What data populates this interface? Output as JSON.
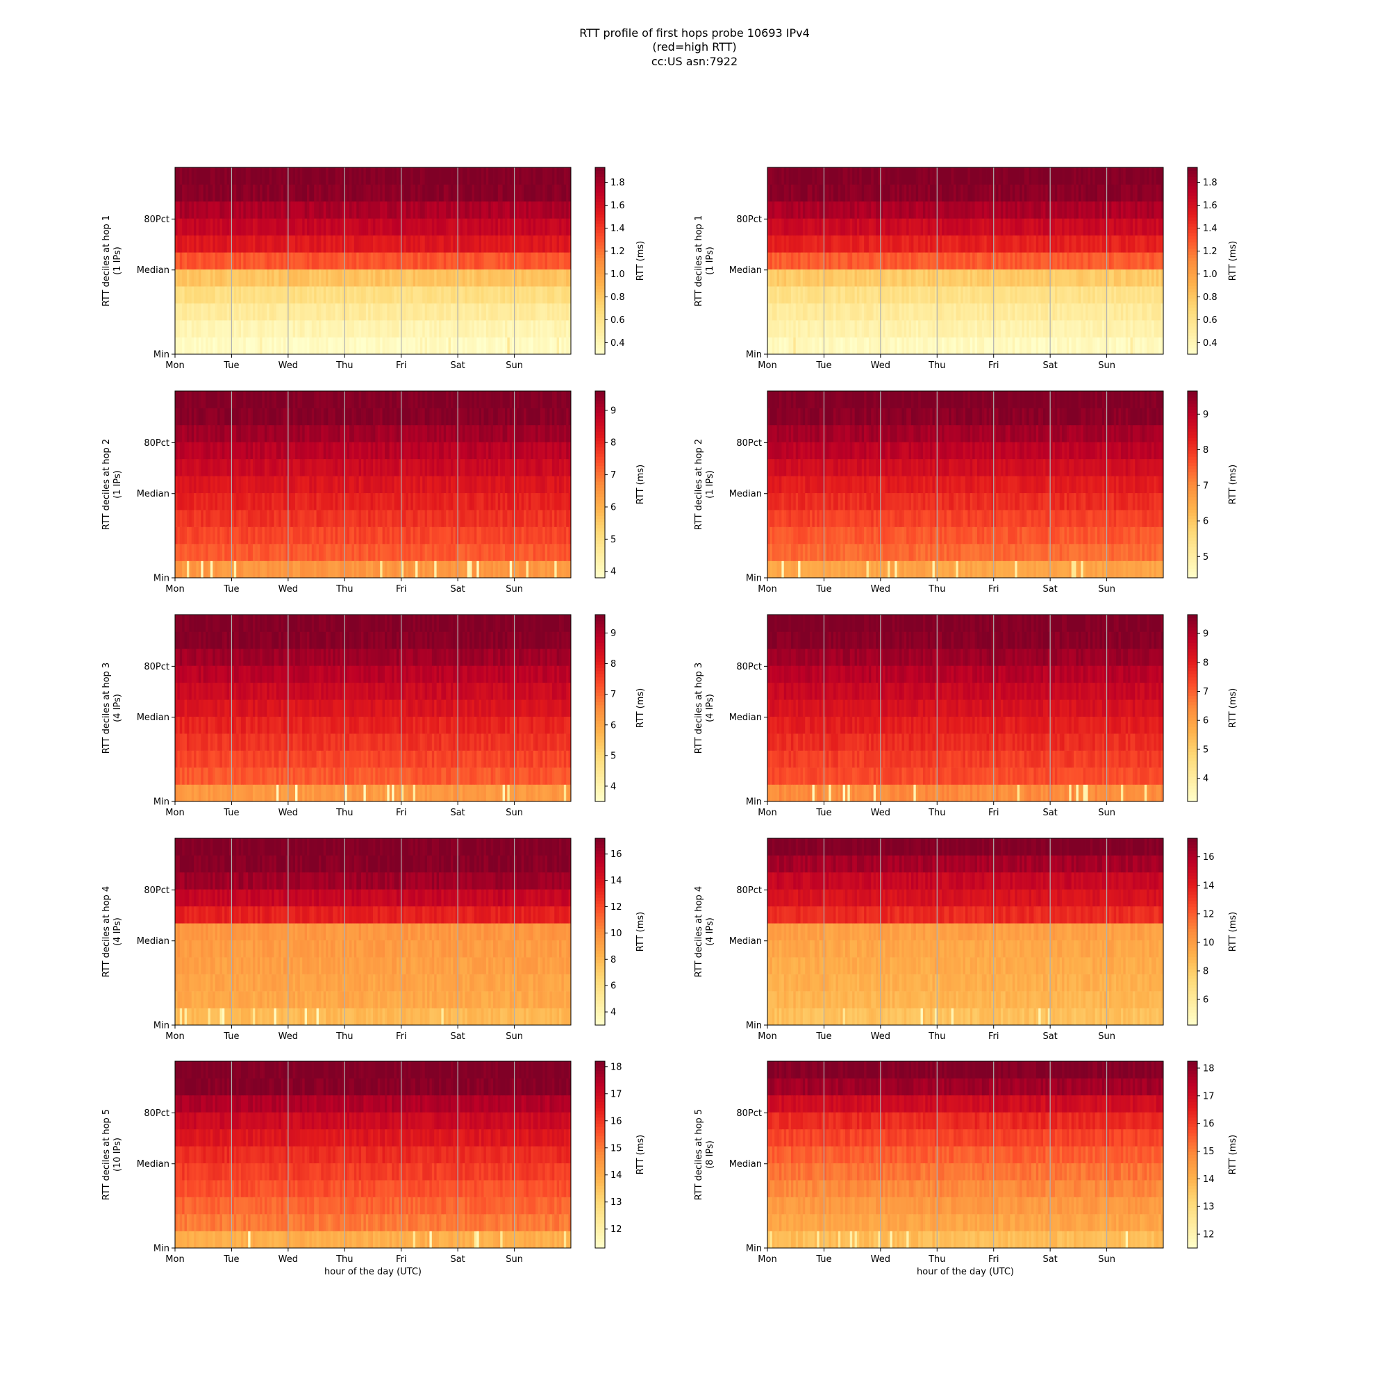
{
  "figure": {
    "title_lines": [
      "RTT profile of first hops probe 10693 IPv4",
      "(red=high RTT)",
      "cc:US asn:7922"
    ],
    "xlabel": "hour of the day (UTC)"
  },
  "chart_data": [
    {
      "type": "heatmap",
      "hop": 1,
      "column": "left",
      "ylabel_lines": [
        "RTT deciles at hop 1",
        "(1 IPs)"
      ],
      "x_ticks": [
        "Mon",
        "Tue",
        "Wed",
        "Thu",
        "Fri",
        "Sat",
        "Sun"
      ],
      "y_ticks": [
        "Min",
        "Median",
        "80Pct"
      ],
      "colorbar_label": "RTT (ms)",
      "colorbar_range": [
        0.3,
        1.93
      ],
      "colorbar_ticks": [
        "0.4",
        "0.6",
        "0.8",
        "1.0",
        "1.2",
        "1.4",
        "1.6",
        "1.8"
      ],
      "decile_rtt": [
        0.34,
        0.42,
        0.52,
        0.65,
        0.82,
        1.3,
        1.55,
        1.68,
        1.78,
        1.9,
        1.93
      ]
    },
    {
      "type": "heatmap",
      "hop": 1,
      "column": "right",
      "ylabel_lines": [
        "RTT deciles at hop 1",
        "(1 IPs)"
      ],
      "x_ticks": [
        "Mon",
        "Tue",
        "Wed",
        "Thu",
        "Fri",
        "Sat",
        "Sun"
      ],
      "y_ticks": [
        "Min",
        "Median",
        "80Pct"
      ],
      "colorbar_label": "RTT (ms)",
      "colorbar_range": [
        0.3,
        1.93
      ],
      "colorbar_ticks": [
        "0.4",
        "0.6",
        "0.8",
        "1.0",
        "1.2",
        "1.4",
        "1.6",
        "1.8"
      ],
      "decile_rtt": [
        0.36,
        0.44,
        0.52,
        0.62,
        0.78,
        1.28,
        1.5,
        1.65,
        1.78,
        1.9,
        1.93
      ]
    },
    {
      "type": "heatmap",
      "hop": 2,
      "column": "left",
      "ylabel_lines": [
        "RTT deciles at hop 2",
        "(1 IPs)"
      ],
      "x_ticks": [
        "Mon",
        "Tue",
        "Wed",
        "Thu",
        "Fri",
        "Sat",
        "Sun"
      ],
      "y_ticks": [
        "Min",
        "Median",
        "80Pct"
      ],
      "colorbar_label": "RTT (ms)",
      "colorbar_range": [
        3.8,
        9.6
      ],
      "colorbar_ticks": [
        "4",
        "5",
        "6",
        "7",
        "8",
        "9"
      ],
      "decile_rtt": [
        6.5,
        7.3,
        7.55,
        7.8,
        8.05,
        8.3,
        8.6,
        8.9,
        9.2,
        9.5,
        9.6
      ]
    },
    {
      "type": "heatmap",
      "hop": 2,
      "column": "right",
      "ylabel_lines": [
        "RTT deciles at hop 2",
        "(1 IPs)"
      ],
      "x_ticks": [
        "Mon",
        "Tue",
        "Wed",
        "Thu",
        "Fri",
        "Sat",
        "Sun"
      ],
      "y_ticks": [
        "Min",
        "Median",
        "80Pct"
      ],
      "colorbar_label": "RTT (ms)",
      "colorbar_range": [
        4.4,
        9.65
      ],
      "colorbar_ticks": [
        "5",
        "6",
        "7",
        "8",
        "9"
      ],
      "decile_rtt": [
        6.6,
        7.4,
        7.6,
        7.85,
        8.1,
        8.35,
        8.65,
        8.95,
        9.25,
        9.55,
        9.65
      ]
    },
    {
      "type": "heatmap",
      "hop": 3,
      "column": "left",
      "ylabel_lines": [
        "RTT deciles at hop 3",
        "(4 IPs)"
      ],
      "x_ticks": [
        "Mon",
        "Tue",
        "Wed",
        "Thu",
        "Fri",
        "Sat",
        "Sun"
      ],
      "y_ticks": [
        "Min",
        "Median",
        "80Pct"
      ],
      "colorbar_label": "RTT (ms)",
      "colorbar_range": [
        3.5,
        9.6
      ],
      "colorbar_ticks": [
        "4",
        "5",
        "6",
        "7",
        "8",
        "9"
      ],
      "decile_rtt": [
        6.3,
        7.2,
        7.45,
        7.7,
        7.95,
        8.25,
        8.55,
        8.85,
        9.2,
        9.5,
        9.6
      ]
    },
    {
      "type": "heatmap",
      "hop": 3,
      "column": "right",
      "ylabel_lines": [
        "RTT deciles at hop 3",
        "(4 IPs)"
      ],
      "x_ticks": [
        "Mon",
        "Tue",
        "Wed",
        "Thu",
        "Fri",
        "Sat",
        "Sun"
      ],
      "y_ticks": [
        "Min",
        "Median",
        "80Pct"
      ],
      "colorbar_label": "RTT (ms)",
      "colorbar_range": [
        3.2,
        9.65
      ],
      "colorbar_ticks": [
        "4",
        "5",
        "6",
        "7",
        "8",
        "9"
      ],
      "decile_rtt": [
        6.4,
        7.3,
        7.5,
        7.75,
        8.0,
        8.3,
        8.6,
        8.9,
        9.25,
        9.55,
        9.65
      ]
    },
    {
      "type": "heatmap",
      "hop": 4,
      "column": "left",
      "ylabel_lines": [
        "RTT deciles at hop 4",
        "(4 IPs)"
      ],
      "x_ticks": [
        "Mon",
        "Tue",
        "Wed",
        "Thu",
        "Fri",
        "Sat",
        "Sun"
      ],
      "y_ticks": [
        "Min",
        "Median",
        "80Pct"
      ],
      "colorbar_label": "RTT (ms)",
      "colorbar_range": [
        3.0,
        17.2
      ],
      "colorbar_ticks": [
        "4",
        "6",
        "8",
        "10",
        "12",
        "14",
        "16"
      ],
      "decile_rtt": [
        8.0,
        8.8,
        9.0,
        9.2,
        9.4,
        9.6,
        13.5,
        15.0,
        16.3,
        17.0,
        17.2
      ]
    },
    {
      "type": "heatmap",
      "hop": 4,
      "column": "right",
      "ylabel_lines": [
        "RTT deciles at hop 4",
        "(4 IPs)"
      ],
      "x_ticks": [
        "Mon",
        "Tue",
        "Wed",
        "Thu",
        "Fri",
        "Sat",
        "Sun"
      ],
      "y_ticks": [
        "Min",
        "Median",
        "80Pct"
      ],
      "colorbar_label": "RTT (ms)",
      "colorbar_range": [
        4.2,
        17.3
      ],
      "colorbar_ticks": [
        "6",
        "8",
        "10",
        "12",
        "14",
        "16"
      ],
      "decile_rtt": [
        8.5,
        9.0,
        9.2,
        9.4,
        9.6,
        9.9,
        13.5,
        14.5,
        15.2,
        16.3,
        17.3
      ]
    },
    {
      "type": "heatmap",
      "hop": 5,
      "column": "left",
      "ylabel_lines": [
        "RTT deciles at hop 5",
        "(10 IPs)"
      ],
      "x_ticks": [
        "Mon",
        "Tue",
        "Wed",
        "Thu",
        "Fri",
        "Sat",
        "Sun"
      ],
      "y_ticks": [
        "Min",
        "Median",
        "80Pct"
      ],
      "colorbar_label": "RTT (ms)",
      "colorbar_range": [
        11.3,
        18.2
      ],
      "colorbar_ticks": [
        "12",
        "13",
        "14",
        "15",
        "16",
        "17",
        "18"
      ],
      "decile_rtt": [
        14.0,
        15.0,
        15.3,
        15.6,
        15.9,
        16.2,
        16.6,
        17.0,
        17.5,
        18.1,
        18.2
      ]
    },
    {
      "type": "heatmap",
      "hop": 5,
      "column": "right",
      "ylabel_lines": [
        "RTT deciles at hop 5",
        "(8 IPs)"
      ],
      "x_ticks": [
        "Mon",
        "Tue",
        "Wed",
        "Thu",
        "Fri",
        "Sat",
        "Sun"
      ],
      "y_ticks": [
        "Min",
        "Median",
        "80Pct"
      ],
      "colorbar_label": "RTT (ms)",
      "colorbar_range": [
        11.5,
        18.25
      ],
      "colorbar_ticks": [
        "12",
        "13",
        "14",
        "15",
        "16",
        "17",
        "18"
      ],
      "decile_rtt": [
        13.8,
        14.3,
        14.6,
        14.9,
        15.2,
        15.5,
        15.9,
        16.3,
        17.0,
        17.8,
        18.2
      ]
    }
  ]
}
